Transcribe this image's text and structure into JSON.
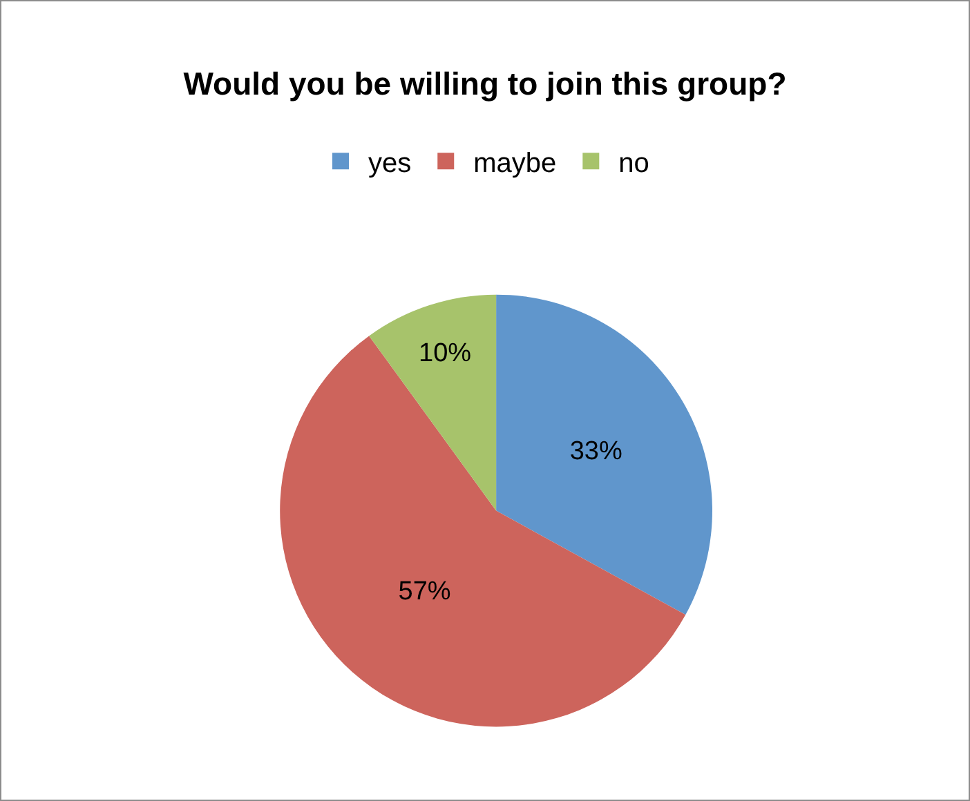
{
  "chart_data": {
    "type": "pie",
    "title": "Would you be willing to join this group?",
    "categories": [
      "yes",
      "maybe",
      "no"
    ],
    "values": [
      33,
      57,
      10
    ],
    "value_labels": [
      "33%",
      "57%",
      "10%"
    ],
    "colors": [
      "#6096cc",
      "#cd645c",
      "#a7c36b"
    ],
    "legend": "top"
  }
}
